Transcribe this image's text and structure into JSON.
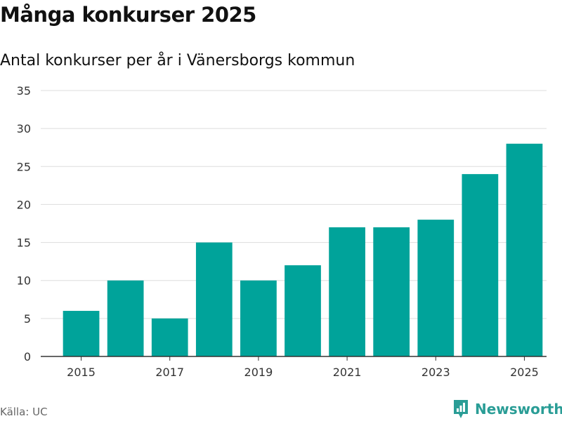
{
  "header": {
    "title": "Många konkurser 2025",
    "subtitle": "Antal konkurser per år i Vänersborgs kommun"
  },
  "footer": {
    "source": "Källa: UC",
    "brand": "Newsworthy"
  },
  "colors": {
    "bar": "#00a39a",
    "grid": "#dddddd",
    "axis": "#333333",
    "brand": "#2a9d96"
  },
  "chart_data": {
    "type": "bar",
    "categories": [
      "2015",
      "2016",
      "2017",
      "2018",
      "2019",
      "2020",
      "2021",
      "2022",
      "2023",
      "2024",
      "2025"
    ],
    "x_tick_labels": [
      "2015",
      "2017",
      "2019",
      "2021",
      "2023",
      "2025"
    ],
    "values": [
      6,
      10,
      5,
      15,
      10,
      12,
      17,
      17,
      18,
      24,
      28
    ],
    "title": "Många konkurser 2025",
    "subtitle": "Antal konkurser per år i Vänersborgs kommun",
    "xlabel": "",
    "ylabel": "",
    "ylim": [
      0,
      35
    ],
    "yticks": [
      0,
      5,
      10,
      15,
      20,
      25,
      30,
      35
    ],
    "grid": true,
    "legend": "none"
  }
}
